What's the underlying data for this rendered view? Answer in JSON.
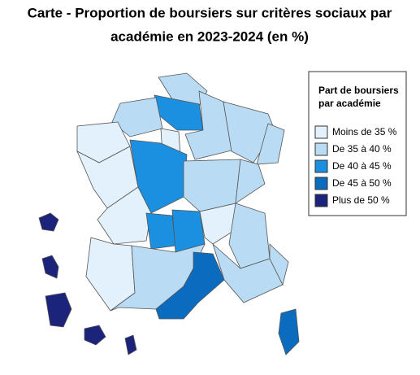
{
  "header": {
    "title_lines": [
      "Carte - Proportion de boursiers sur critères sociaux par",
      "académie en 2023-2024 (en %)"
    ]
  },
  "legend": {
    "title_lines": [
      "Part de boursiers",
      "par académie"
    ],
    "items": [
      {
        "label": "Moins de 35 %",
        "color": "#e2f1fb"
      },
      {
        "label": "De 35 à 40 %",
        "color": "#b9dcf4"
      },
      {
        "label": "De 40 à 45 %",
        "color": "#1c90e0"
      },
      {
        "label": "De 45 à 50 %",
        "color": "#0b6cbf"
      },
      {
        "label": "Plus de 50 %",
        "color": "#1b237a"
      }
    ]
  }
}
